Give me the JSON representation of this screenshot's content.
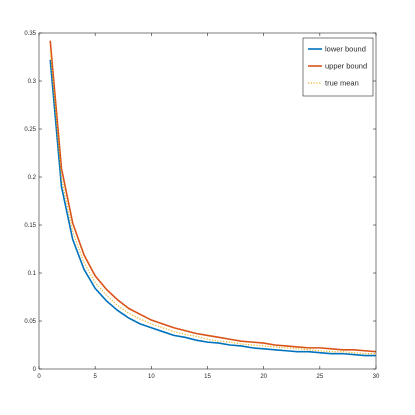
{
  "chart_data": {
    "type": "line",
    "title": "",
    "xlabel": "",
    "ylabel": "",
    "xlim": [
      0,
      30
    ],
    "ylim": [
      0,
      0.35
    ],
    "xticks": [
      0,
      5,
      10,
      15,
      20,
      25,
      30
    ],
    "xtick_labels": [
      "0",
      "5",
      "10",
      "15",
      "20",
      "25",
      "30"
    ],
    "yticks": [
      0,
      0.05,
      0.1,
      0.15,
      0.2,
      0.25,
      0.3,
      0.35
    ],
    "ytick_labels": [
      "0",
      "0.05",
      "0.1",
      "0.15",
      "0.2",
      "0.25",
      "0.3",
      "0.35"
    ],
    "grid": false,
    "legend_position": "top-right",
    "x": [
      1,
      2,
      3,
      4,
      5,
      6,
      7,
      8,
      9,
      10,
      11,
      12,
      13,
      14,
      15,
      16,
      17,
      18,
      19,
      20,
      21,
      22,
      23,
      24,
      25,
      26,
      27,
      28,
      29,
      30
    ],
    "series": [
      {
        "name": "lower bound",
        "color": "#0072BD",
        "style": "solid",
        "values": [
          0.322,
          0.19,
          0.135,
          0.104,
          0.084,
          0.071,
          0.061,
          0.053,
          0.047,
          0.043,
          0.039,
          0.035,
          0.033,
          0.03,
          0.028,
          0.027,
          0.025,
          0.024,
          0.022,
          0.021,
          0.02,
          0.019,
          0.018,
          0.018,
          0.017,
          0.016,
          0.016,
          0.015,
          0.014,
          0.014
        ]
      },
      {
        "name": "upper bound",
        "color": "#D95319",
        "style": "solid",
        "values": [
          0.342,
          0.209,
          0.152,
          0.119,
          0.097,
          0.083,
          0.072,
          0.063,
          0.057,
          0.051,
          0.047,
          0.043,
          0.04,
          0.037,
          0.035,
          0.033,
          0.031,
          0.029,
          0.028,
          0.027,
          0.025,
          0.024,
          0.023,
          0.022,
          0.022,
          0.021,
          0.02,
          0.02,
          0.019,
          0.018
        ]
      },
      {
        "name": "true mean",
        "color": "#EDB120",
        "style": "dotted",
        "values": [
          0.332,
          0.199,
          0.143,
          0.111,
          0.09,
          0.077,
          0.066,
          0.058,
          0.052,
          0.047,
          0.043,
          0.039,
          0.036,
          0.034,
          0.031,
          0.029,
          0.028,
          0.026,
          0.025,
          0.024,
          0.023,
          0.022,
          0.021,
          0.02,
          0.019,
          0.018,
          0.018,
          0.017,
          0.016,
          0.016
        ]
      }
    ]
  }
}
